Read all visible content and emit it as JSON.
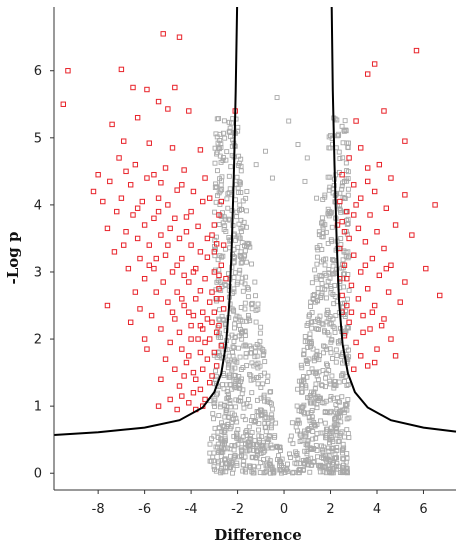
{
  "chart_data": {
    "type": "scatter",
    "title": "",
    "xlabel": "Difference",
    "ylabel": "-Log p",
    "xlim": [
      -9.9,
      7.4
    ],
    "ylim": [
      -0.25,
      6.95
    ],
    "x_ticks": [
      -8,
      -6,
      -4,
      -2,
      0,
      2,
      4,
      6
    ],
    "y_ticks": [
      0,
      1,
      2,
      3,
      4,
      5,
      6
    ],
    "x_tick_labels": [
      "-8",
      "-6",
      "-4",
      "-2",
      "0",
      "2",
      "4",
      "6"
    ],
    "y_tick_labels": [
      "0",
      "1",
      "2",
      "3",
      "4",
      "5",
      "6"
    ],
    "grid": false,
    "legend": "none",
    "colors": {
      "significant": "#e8232a",
      "not_significant": "#a9a9a9",
      "threshold": "#000000"
    },
    "threshold_curve": {
      "description": "hyperbolic significance cutoff (s0 curve)",
      "points": [
        [
          -9.9,
          0.57
        ],
        [
          -8.0,
          0.61
        ],
        [
          -6.0,
          0.68
        ],
        [
          -4.5,
          0.79
        ],
        [
          -3.5,
          0.98
        ],
        [
          -3.0,
          1.21
        ],
        [
          -2.7,
          1.49
        ],
        [
          -2.5,
          1.92
        ],
        [
          -2.35,
          2.55
        ],
        [
          -2.25,
          3.4
        ],
        [
          -2.15,
          4.6
        ],
        [
          -2.08,
          5.7
        ],
        [
          -2.02,
          6.95
        ]
      ],
      "mirror_points": [
        [
          2.05,
          6.95
        ],
        [
          2.1,
          5.7
        ],
        [
          2.17,
          4.6
        ],
        [
          2.27,
          3.4
        ],
        [
          2.37,
          2.55
        ],
        [
          2.52,
          1.92
        ],
        [
          2.75,
          1.49
        ],
        [
          3.05,
          1.21
        ],
        [
          3.6,
          0.98
        ],
        [
          4.6,
          0.79
        ],
        [
          6.0,
          0.68
        ],
        [
          7.4,
          0.62
        ]
      ]
    },
    "series": [
      {
        "color": "#e8232a",
        "points": [
          [
            -5.2,
            6.55
          ],
          [
            -4.5,
            6.5
          ],
          [
            -9.3,
            6.0
          ],
          [
            -7.0,
            6.02
          ],
          [
            -6.5,
            5.75
          ],
          [
            -5.9,
            5.72
          ],
          [
            -4.7,
            5.75
          ],
          [
            -5.4,
            5.54
          ],
          [
            -2.1,
            5.4
          ],
          [
            -9.5,
            5.5
          ],
          [
            -6.3,
            5.3
          ],
          [
            -7.4,
            5.2
          ],
          [
            -5.0,
            5.43
          ],
          [
            -4.1,
            5.4
          ],
          [
            -6.9,
            4.95
          ],
          [
            -5.8,
            4.92
          ],
          [
            -4.8,
            4.85
          ],
          [
            -3.6,
            4.82
          ],
          [
            -7.1,
            4.7
          ],
          [
            -6.4,
            4.6
          ],
          [
            -5.1,
            4.55
          ],
          [
            -4.3,
            4.52
          ],
          [
            -8.0,
            4.45
          ],
          [
            -5.6,
            4.45
          ],
          [
            -8.2,
            4.2
          ],
          [
            -7.5,
            4.35
          ],
          [
            -6.6,
            4.3
          ],
          [
            -5.3,
            4.33
          ],
          [
            -4.6,
            4.22
          ],
          [
            -3.9,
            4.2
          ],
          [
            -3.2,
            4.1
          ],
          [
            -6.1,
            4.05
          ],
          [
            -5.0,
            4.0
          ],
          [
            -3.5,
            4.05
          ],
          [
            -7.2,
            3.9
          ],
          [
            -6.5,
            3.85
          ],
          [
            -5.6,
            3.8
          ],
          [
            -4.2,
            3.82
          ],
          [
            -2.8,
            3.85
          ],
          [
            -6.0,
            3.7
          ],
          [
            -4.9,
            3.65
          ],
          [
            -3.7,
            3.68
          ],
          [
            -6.8,
            3.6
          ],
          [
            -5.3,
            3.55
          ],
          [
            -4.5,
            3.5
          ],
          [
            -3.1,
            3.55
          ],
          [
            -5.8,
            3.4
          ],
          [
            -4.0,
            3.4
          ],
          [
            -2.9,
            3.42
          ],
          [
            -6.2,
            3.2
          ],
          [
            -5.1,
            3.25
          ],
          [
            -4.4,
            3.2
          ],
          [
            -3.3,
            3.22
          ],
          [
            -5.6,
            3.05
          ],
          [
            -4.8,
            3.0
          ],
          [
            -3.8,
            3.05
          ],
          [
            -2.7,
            3.1
          ],
          [
            -6.0,
            2.9
          ],
          [
            -5.2,
            2.85
          ],
          [
            -4.1,
            2.85
          ],
          [
            -3.4,
            2.9
          ],
          [
            -5.5,
            2.7
          ],
          [
            -4.6,
            2.7
          ],
          [
            -3.6,
            2.72
          ],
          [
            -2.8,
            2.75
          ],
          [
            -7.6,
            2.5
          ],
          [
            -6.2,
            2.45
          ],
          [
            -5.0,
            2.55
          ],
          [
            -4.3,
            2.5
          ],
          [
            -3.2,
            2.55
          ],
          [
            -5.7,
            2.35
          ],
          [
            -4.7,
            2.3
          ],
          [
            -3.9,
            2.35
          ],
          [
            -3.0,
            2.4
          ],
          [
            -6.6,
            2.25
          ],
          [
            -5.3,
            2.15
          ],
          [
            -4.5,
            2.1
          ],
          [
            -3.5,
            2.15
          ],
          [
            -2.8,
            2.2
          ],
          [
            -6.0,
            2.0
          ],
          [
            -4.9,
            1.95
          ],
          [
            -4.0,
            2.0
          ],
          [
            -3.2,
            2.0
          ],
          [
            -5.9,
            1.85
          ],
          [
            -4.4,
            1.85
          ],
          [
            -3.6,
            1.8
          ],
          [
            -5.1,
            1.7
          ],
          [
            -4.2,
            1.65
          ],
          [
            -3.3,
            1.7
          ],
          [
            -4.7,
            1.55
          ],
          [
            -3.9,
            1.5
          ],
          [
            -3.1,
            1.45
          ],
          [
            -5.3,
            1.4
          ],
          [
            -4.5,
            1.3
          ],
          [
            -3.6,
            1.25
          ],
          [
            -4.9,
            1.1
          ],
          [
            -4.1,
            1.05
          ],
          [
            -3.4,
            1.1
          ],
          [
            -5.4,
            1.0
          ],
          [
            -4.6,
            0.95
          ],
          [
            -3.8,
            0.95
          ],
          [
            -7.8,
            4.05
          ],
          [
            -7.0,
            4.1
          ],
          [
            -6.9,
            3.4
          ],
          [
            -6.7,
            3.05
          ],
          [
            -7.3,
            3.3
          ],
          [
            -5.4,
            3.9
          ],
          [
            -4.2,
            3.6
          ],
          [
            -3.0,
            3.7
          ],
          [
            -2.6,
            3.4
          ],
          [
            -2.5,
            2.9
          ],
          [
            -2.9,
            2.6
          ],
          [
            -3.5,
            2.4
          ],
          [
            -2.6,
            2.45
          ],
          [
            -3.3,
            2.3
          ],
          [
            -3.8,
            2.6
          ],
          [
            -2.9,
            2.1
          ],
          [
            -2.7,
            1.9
          ],
          [
            -3.4,
            1.95
          ],
          [
            -3.0,
            1.8
          ],
          [
            -2.9,
            1.6
          ],
          [
            -3.5,
            1.55
          ],
          [
            -3.2,
            1.35
          ],
          [
            -3.9,
            1.2
          ],
          [
            -4.3,
            1.45
          ],
          [
            -4.0,
            2.2
          ],
          [
            -4.4,
            2.6
          ],
          [
            -4.8,
            2.4
          ],
          [
            -5.0,
            3.4
          ],
          [
            -5.5,
            3.2
          ],
          [
            -6.3,
            3.5
          ],
          [
            -5.8,
            3.1
          ],
          [
            -6.4,
            2.7
          ],
          [
            -3.6,
            3.3
          ],
          [
            -3.3,
            3.5
          ],
          [
            -3.0,
            3.0
          ],
          [
            -2.7,
            2.6
          ],
          [
            -3.1,
            2.7
          ],
          [
            -3.7,
            2.0
          ],
          [
            -4.1,
            1.75
          ],
          [
            -3.8,
            1.4
          ],
          [
            -4.4,
            1.15
          ],
          [
            -3.5,
            1.0
          ],
          [
            -4.0,
            3.9
          ],
          [
            -4.7,
            3.8
          ],
          [
            -5.4,
            4.1
          ],
          [
            -5.9,
            4.4
          ],
          [
            -4.4,
            4.3
          ],
          [
            -3.4,
            4.4
          ],
          [
            -2.7,
            4.05
          ],
          [
            -6.8,
            4.5
          ],
          [
            -6.3,
            3.95
          ],
          [
            -7.6,
            3.65
          ],
          [
            -3.0,
            3.3
          ],
          [
            -3.9,
            3.0
          ],
          [
            -4.3,
            2.95
          ],
          [
            -4.6,
            3.1
          ],
          [
            -2.8,
            2.95
          ],
          [
            -3.6,
            2.2
          ],
          [
            -4.1,
            2.4
          ],
          [
            -3.1,
            2.25
          ],
          [
            3.9,
            6.1
          ],
          [
            5.7,
            6.3
          ],
          [
            3.6,
            5.95
          ],
          [
            4.3,
            5.4
          ],
          [
            3.1,
            5.25
          ],
          [
            3.3,
            4.85
          ],
          [
            5.2,
            4.95
          ],
          [
            2.8,
            4.7
          ],
          [
            4.1,
            4.6
          ],
          [
            3.6,
            4.55
          ],
          [
            2.5,
            4.45
          ],
          [
            4.6,
            4.4
          ],
          [
            3.0,
            4.3
          ],
          [
            3.9,
            4.2
          ],
          [
            2.4,
            4.05
          ],
          [
            5.2,
            4.15
          ],
          [
            3.3,
            4.1
          ],
          [
            4.4,
            3.95
          ],
          [
            2.7,
            3.9
          ],
          [
            3.7,
            3.85
          ],
          [
            6.5,
            4.0
          ],
          [
            2.5,
            3.75
          ],
          [
            4.8,
            3.7
          ],
          [
            3.2,
            3.65
          ],
          [
            4.0,
            3.6
          ],
          [
            2.8,
            3.5
          ],
          [
            5.5,
            3.55
          ],
          [
            3.5,
            3.45
          ],
          [
            2.4,
            3.35
          ],
          [
            4.3,
            3.35
          ],
          [
            3.0,
            3.25
          ],
          [
            3.8,
            3.2
          ],
          [
            2.6,
            3.1
          ],
          [
            4.6,
            3.1
          ],
          [
            6.1,
            3.05
          ],
          [
            3.3,
            3.0
          ],
          [
            2.4,
            2.9
          ],
          [
            4.1,
            2.95
          ],
          [
            5.2,
            2.85
          ],
          [
            2.9,
            2.8
          ],
          [
            3.6,
            2.75
          ],
          [
            2.5,
            2.65
          ],
          [
            4.5,
            2.7
          ],
          [
            6.7,
            2.65
          ],
          [
            3.2,
            2.6
          ],
          [
            2.7,
            2.5
          ],
          [
            3.9,
            2.5
          ],
          [
            5.0,
            2.55
          ],
          [
            2.5,
            2.4
          ],
          [
            3.4,
            2.35
          ],
          [
            4.3,
            2.3
          ],
          [
            2.8,
            2.25
          ],
          [
            3.7,
            2.15
          ],
          [
            2.6,
            2.05
          ],
          [
            4.6,
            2.0
          ],
          [
            3.1,
            1.95
          ],
          [
            4.0,
            1.85
          ],
          [
            3.3,
            1.75
          ],
          [
            4.8,
            1.75
          ],
          [
            3.6,
            1.6
          ],
          [
            3.0,
            1.55
          ],
          [
            2.6,
            3.6
          ],
          [
            3.1,
            4.0
          ],
          [
            3.5,
            3.1
          ],
          [
            2.9,
            2.4
          ],
          [
            3.8,
            2.4
          ],
          [
            4.2,
            2.2
          ],
          [
            3.4,
            2.1
          ],
          [
            3.9,
            1.65
          ],
          [
            2.7,
            2.9
          ],
          [
            3.0,
            3.85
          ],
          [
            2.3,
            3.7
          ],
          [
            3.6,
            4.35
          ],
          [
            4.4,
            3.05
          ]
        ]
      }
    ],
    "gray_cloud": {
      "color": "#a9a9a9",
      "description": "non-significant proteins, dense V-shaped cloud centered at 0",
      "x_range": [
        -3.2,
        2.8
      ],
      "y_range": [
        0.0,
        5.6
      ],
      "approx_count": 1300
    }
  }
}
